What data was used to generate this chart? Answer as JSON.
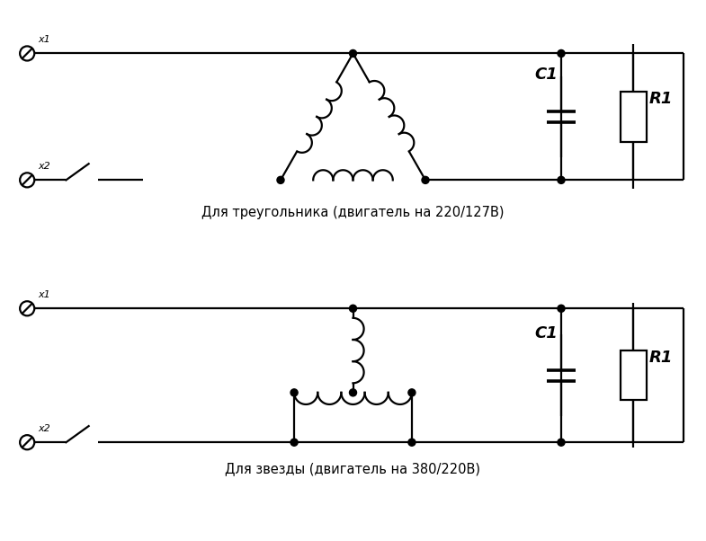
{
  "bg_color": "#ffffff",
  "line_color": "#000000",
  "lw": 1.6,
  "title1": "Для треугольника (двигатель на 220/127В)",
  "title2": "Для звезды (двигатель на 380/220В)",
  "label_x1": "x1",
  "label_x2": "x2",
  "label_c1": "C1",
  "label_r1": "R1",
  "figw": 7.85,
  "figh": 6.02,
  "dpi": 100
}
